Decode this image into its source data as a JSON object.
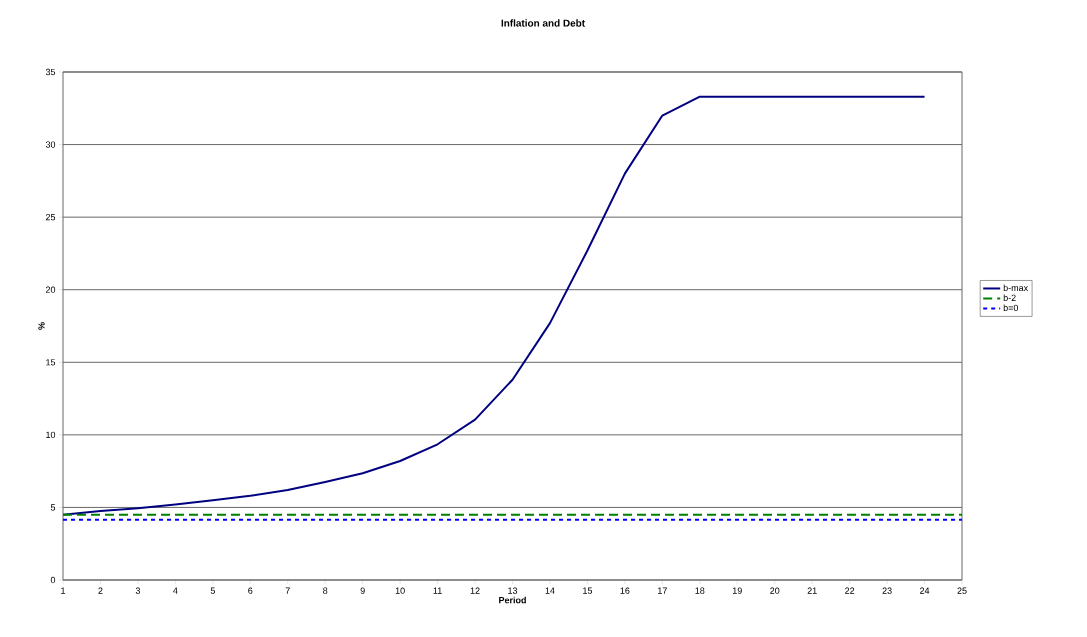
{
  "chart_data": {
    "type": "line",
    "title": "Inflation and Debt",
    "xlabel": "Period",
    "ylabel": "%",
    "x": [
      1,
      2,
      3,
      4,
      5,
      6,
      7,
      8,
      9,
      10,
      11,
      12,
      13,
      14,
      15,
      16,
      17,
      18,
      19,
      20,
      21,
      22,
      23,
      24,
      25
    ],
    "series": [
      {
        "name": "b-max",
        "color": "#000080",
        "line_style": "solid",
        "values": [
          4.5,
          4.75,
          4.95,
          5.2,
          5.5,
          5.8,
          6.2,
          6.75,
          7.35,
          8.2,
          9.35,
          11.05,
          13.8,
          17.7,
          22.7,
          28,
          32,
          33.3,
          33.3,
          33.3,
          33.3,
          33.3,
          33.3,
          33.3,
          null
        ]
      },
      {
        "name": "b-2",
        "color": "#008000",
        "line_style": "dashed",
        "values": [
          4.5,
          4.5,
          4.5,
          4.5,
          4.5,
          4.5,
          4.5,
          4.5,
          4.5,
          4.5,
          4.5,
          4.5,
          4.5,
          4.5,
          4.5,
          4.5,
          4.5,
          4.5,
          4.5,
          4.5,
          4.5,
          4.5,
          4.5,
          4.5,
          4.5
        ]
      },
      {
        "name": "b=0",
        "color": "#0000ff",
        "line_style": "dotted",
        "values": [
          4.15,
          4.15,
          4.15,
          4.15,
          4.15,
          4.15,
          4.15,
          4.15,
          4.15,
          4.15,
          4.15,
          4.15,
          4.15,
          4.15,
          4.15,
          4.15,
          4.15,
          4.15,
          4.15,
          4.15,
          4.15,
          4.15,
          4.15,
          4.15,
          4.15
        ]
      }
    ],
    "xlim": [
      1,
      25
    ],
    "xticks": [
      1,
      2,
      3,
      4,
      5,
      6,
      7,
      8,
      9,
      10,
      11,
      12,
      13,
      14,
      15,
      16,
      17,
      18,
      19,
      20,
      21,
      22,
      23,
      24,
      25
    ],
    "ylim": [
      0,
      35
    ],
    "yticks": [
      0,
      5,
      10,
      15,
      20,
      25,
      30,
      35
    ],
    "grid": "y",
    "legend": "right",
    "marker": "none"
  }
}
